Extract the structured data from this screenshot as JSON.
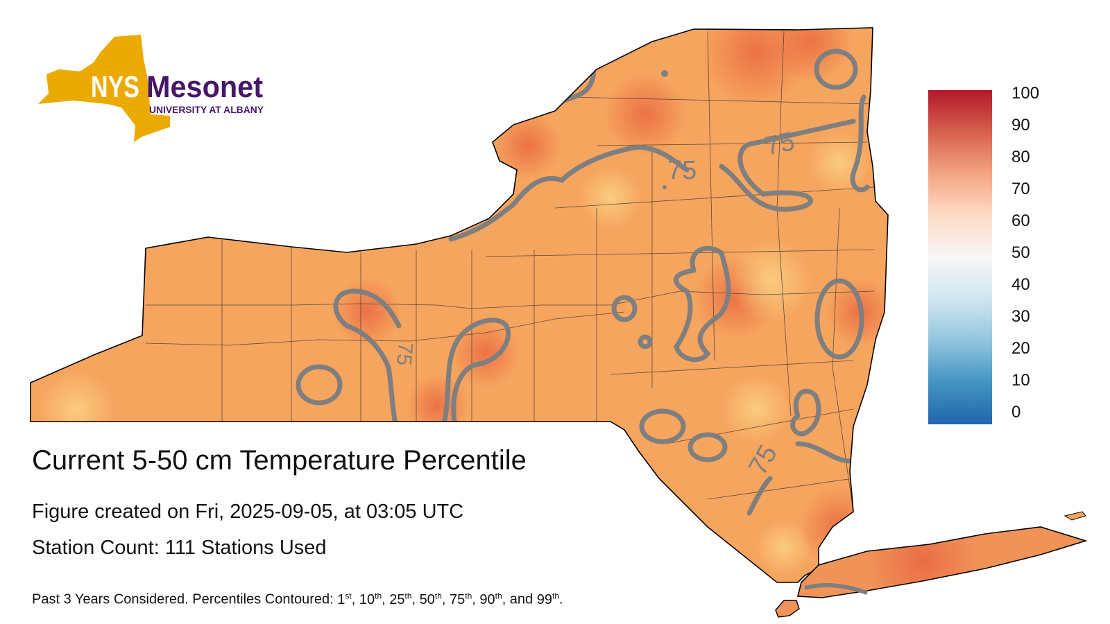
{
  "logo": {
    "abbr": "NYS",
    "name": "Mesonet",
    "sub": "UNIVERSITY AT ALBANY",
    "gold": "#EBAA00",
    "purple": "#46166B"
  },
  "figure": {
    "title": "Current 5-50 cm Temperature Percentile",
    "created": "Figure created on Fri, 2025-09-05, at 03:05 UTC",
    "stations": "Station Count: 111 Stations Used",
    "note": {
      "prefix": "Past 3 Years Considered. Percentiles Contoured: ",
      "items": [
        {
          "n": "1",
          "suf": "st"
        },
        {
          "n": "10",
          "suf": "th"
        },
        {
          "n": "25",
          "suf": "th"
        },
        {
          "n": "50",
          "suf": "th"
        },
        {
          "n": "75",
          "suf": "th"
        },
        {
          "n": "90",
          "suf": "th"
        },
        {
          "n": "99",
          "suf": "th"
        }
      ],
      "and": "and",
      "end": "."
    }
  },
  "colorbar": {
    "ticks": [
      "100",
      "90",
      "80",
      "70",
      "60",
      "50",
      "40",
      "30",
      "20",
      "10",
      "0"
    ],
    "colors": [
      "#b2182b",
      "#d6604d",
      "#f4a582",
      "#fddbc7",
      "#f7f7f7",
      "#d1e5f0",
      "#92c5de",
      "#4393c3",
      "#2166ac"
    ]
  },
  "map": {
    "fill_base": "#F6A55E",
    "contour_color": "#7f7f7f",
    "contour_labels": [
      "75",
      "75",
      "75",
      "75"
    ]
  }
}
